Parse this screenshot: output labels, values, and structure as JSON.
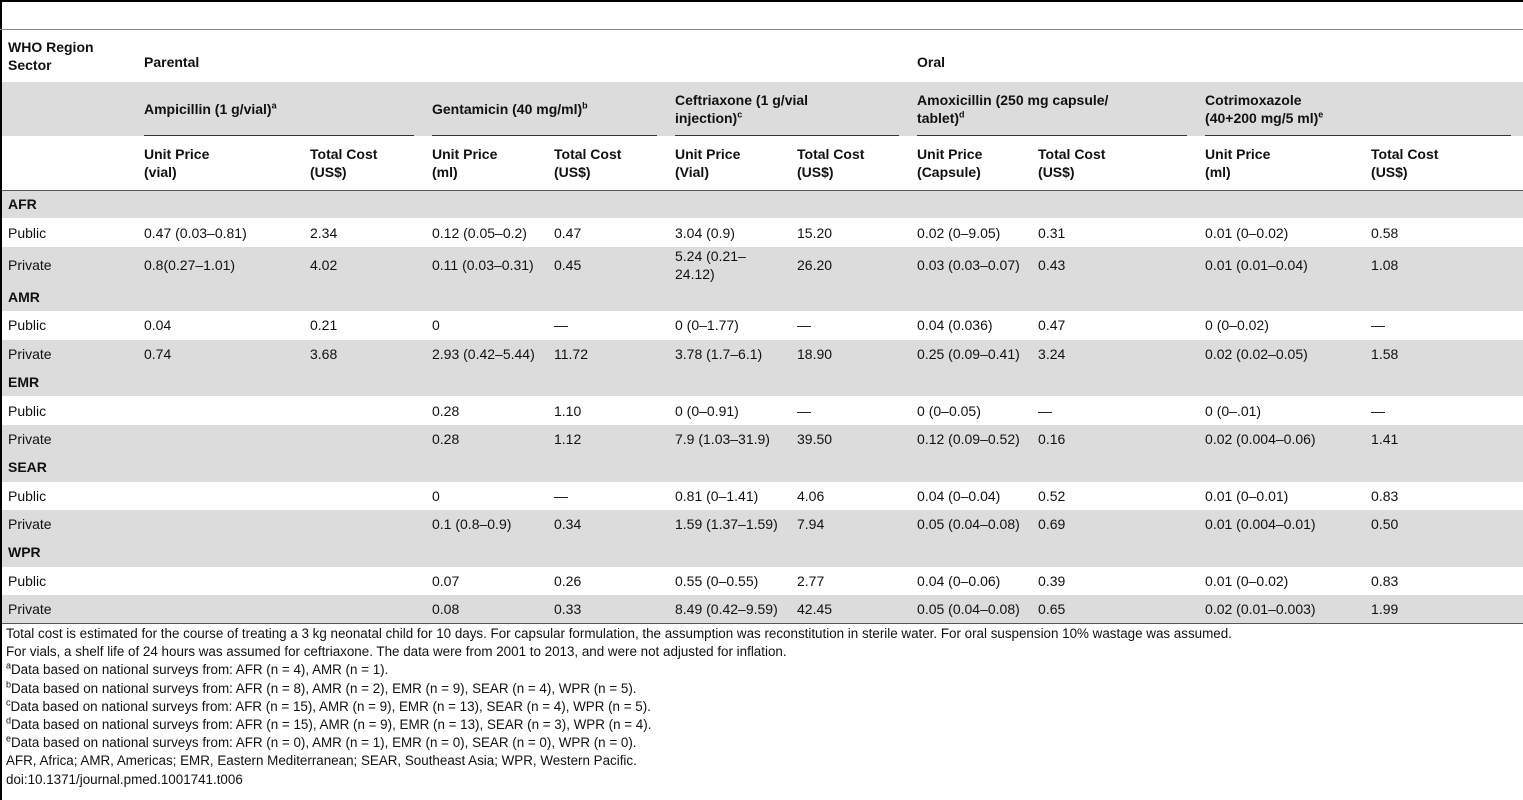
{
  "header": {
    "row_label_1": "WHO Region",
    "row_label_2": "Sector",
    "group_parental": "Parental",
    "group_oral": "Oral",
    "drugs": [
      {
        "name": "Ampicillin (1 g/vial)",
        "sup": "a"
      },
      {
        "name": "Gentamicin (40 mg/ml)",
        "sup": "b"
      },
      {
        "name_line1": "Ceftriaxone (1 g/vial",
        "name_line2": "injection)",
        "sup": "c"
      },
      {
        "name_line1": "Amoxicillin (250 mg capsule/",
        "name_line2": "tablet)",
        "sup": "d"
      },
      {
        "name_line1": "Cotrimoxazole",
        "name_line2": "(40+200 mg/5 ml)",
        "sup": "e"
      }
    ],
    "subcols": [
      {
        "l1": "Unit Price",
        "l2": "(vial)"
      },
      {
        "l1": "Total Cost",
        "l2": "(US$)"
      },
      {
        "l1": "Unit Price",
        "l2": "(ml)"
      },
      {
        "l1": "Total Cost",
        "l2": "(US$)"
      },
      {
        "l1": "Unit Price",
        "l2": "(Vial)"
      },
      {
        "l1": "Total Cost",
        "l2": "(US$)"
      },
      {
        "l1": "Unit Price",
        "l2": "(Capsule)"
      },
      {
        "l1": "Total Cost",
        "l2": "(US$)"
      },
      {
        "l1": "Unit Price",
        "l2": "(ml)"
      },
      {
        "l1": "Total Cost",
        "l2": "(US$)"
      }
    ]
  },
  "regions": [
    {
      "name": "AFR",
      "rows": [
        {
          "sector": "Public",
          "cells": [
            "0.47 (0.03–0.81)",
            "2.34",
            "0.12 (0.05–0.2)",
            "0.47",
            "3.04 (0.9)",
            "15.20",
            "0.02 (0–9.05)",
            "0.31",
            "0.01 (0–0.02)",
            "0.58"
          ]
        },
        {
          "sector": "Private",
          "cells": [
            "0.8(0.27–1.01)",
            "4.02",
            "0.11 (0.03–0.31)",
            "0.45",
            "5.24 (0.21–24.12)",
            "26.20",
            "0.03 (0.03–0.07)",
            "0.43",
            "0.01 (0.01–0.04)",
            "1.08"
          ]
        }
      ]
    },
    {
      "name": "AMR",
      "rows": [
        {
          "sector": "Public",
          "cells": [
            "0.04",
            "0.21",
            "0",
            "—",
            "0 (0–1.77)",
            "—",
            "0.04 (0.036)",
            "0.47",
            "0 (0–0.02)",
            "—"
          ]
        },
        {
          "sector": "Private",
          "cells": [
            "0.74",
            "3.68",
            "2.93 (0.42–5.44)",
            "11.72",
            "3.78 (1.7–6.1)",
            "18.90",
            "0.25 (0.09–0.41)",
            "3.24",
            "0.02 (0.02–0.05)",
            "1.58"
          ]
        }
      ]
    },
    {
      "name": "EMR",
      "rows": [
        {
          "sector": "Public",
          "cells": [
            "",
            "",
            "0.28",
            "1.10",
            "0 (0–0.91)",
            "—",
            "0 (0–0.05)",
            "—",
            "0 (0–.01)",
            "—"
          ]
        },
        {
          "sector": "Private",
          "cells": [
            "",
            "",
            "0.28",
            "1.12",
            "7.9 (1.03–31.9)",
            "39.50",
            "0.12 (0.09–0.52)",
            "0.16",
            "0.02 (0.004–0.06)",
            "1.41"
          ]
        }
      ]
    },
    {
      "name": "SEAR",
      "rows": [
        {
          "sector": "Public",
          "cells": [
            "",
            "",
            "0",
            "—",
            "0.81 (0–1.41)",
            "4.06",
            "0.04 (0–0.04)",
            "0.52",
            "0.01 (0–0.01)",
            "0.83"
          ]
        },
        {
          "sector": "Private",
          "cells": [
            "",
            "",
            "0.1 (0.8–0.9)",
            "0.34",
            "1.59 (1.37–1.59)",
            "7.94",
            "0.05 (0.04–0.08)",
            "0.69",
            "0.01 (0.004–0.01)",
            "0.50"
          ]
        }
      ]
    },
    {
      "name": "WPR",
      "rows": [
        {
          "sector": "Public",
          "cells": [
            "",
            "",
            "0.07",
            "0.26",
            "0.55 (0–0.55)",
            "2.77",
            "0.04 (0–0.06)",
            "0.39",
            "0.01 (0–0.02)",
            "0.83"
          ]
        },
        {
          "sector": "Private",
          "cells": [
            "",
            "",
            "0.08",
            "0.33",
            "8.49 (0.42–9.59)",
            "42.45",
            "0.05 (0.04–0.08)",
            "0.65",
            "0.02 (0.01–0.003)",
            "1.99"
          ]
        }
      ]
    }
  ],
  "notes": {
    "intro_1": "Total cost is estimated for the course of treating a 3 kg neonatal child for 10 days. For capsular formulation, the assumption was reconstitution in sterile water. For oral suspension 10% wastage was assumed.",
    "intro_2": "For vials, a shelf life of 24 hours was assumed for ceftriaxone. The data were from 2001 to 2013, and were not adjusted for inflation.",
    "footnotes": [
      {
        "sup": "a",
        "text": "Data based on national surveys from: AFR (n = 4), AMR (n = 1)."
      },
      {
        "sup": "b",
        "text": "Data based on national surveys from: AFR (n = 8), AMR (n = 2), EMR (n = 9), SEAR (n = 4), WPR (n = 5)."
      },
      {
        "sup": "c",
        "text": "Data based on national surveys from: AFR (n = 15), AMR (n = 9), EMR (n = 13), SEAR (n = 4), WPR (n = 5)."
      },
      {
        "sup": "d",
        "text": "Data based on national surveys from: AFR (n = 15), AMR (n = 9), EMR (n = 13), SEAR (n = 3), WPR (n = 4)."
      },
      {
        "sup": "e",
        "text": "Data based on national surveys from: AFR (n = 0), AMR (n = 1), EMR (n = 0), SEAR (n = 0), WPR (n = 0)."
      }
    ],
    "abbrev": "AFR, Africa; AMR, Americas; EMR, Eastern Mediterranean; SEAR, Southeast Asia; WPR, Western Pacific.",
    "doi": "doi:10.1371/journal.pmed.1001741.t006"
  }
}
